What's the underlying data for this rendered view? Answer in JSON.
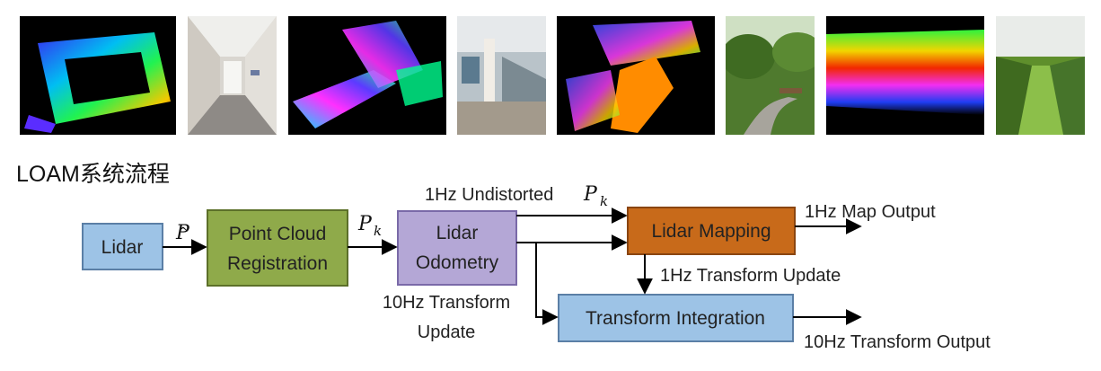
{
  "title": "LOAM系统流程",
  "thumbnails": [
    {
      "name": "indoor-pointcloud-loop",
      "kind": "pointcloud"
    },
    {
      "name": "hallway-photo",
      "kind": "photo"
    },
    {
      "name": "building-pointcloud",
      "kind": "pointcloud"
    },
    {
      "name": "atrium-stairs-photo",
      "kind": "photo"
    },
    {
      "name": "campus-pointcloud",
      "kind": "pointcloud"
    },
    {
      "name": "park-path-photo",
      "kind": "photo"
    },
    {
      "name": "orchard-pointcloud",
      "kind": "pointcloud"
    },
    {
      "name": "orchard-row-photo",
      "kind": "photo"
    }
  ],
  "nodes": {
    "lidar": {
      "line1": "Lidar",
      "fill": "#9dc3e6",
      "stroke": "#5b7fa6"
    },
    "registration": {
      "line1": "Point Cloud",
      "line2": "Registration",
      "fill": "#8faa4a",
      "stroke": "#5c7029"
    },
    "odometry": {
      "line1": "Lidar",
      "line2": "Odometry",
      "fill": "#b4a7d6",
      "stroke": "#7a6aa8"
    },
    "mapping": {
      "line1": "Lidar Mapping",
      "fill": "#c86a1a",
      "stroke": "#8a4510"
    },
    "integration": {
      "line1": "Transform Integration",
      "fill": "#9dc3e6",
      "stroke": "#5b7fa6"
    }
  },
  "edges": {
    "lidar_to_registration": {
      "symbol": "P",
      "accent": "^"
    },
    "registration_to_odometry": {
      "symbol": "P",
      "subscript": "k"
    },
    "odometry_to_mapping": {
      "label": "1Hz Undistorted",
      "symbol": "P",
      "subscript": "k"
    },
    "map_output": {
      "label": "1Hz Map Output"
    },
    "mapping_to_integration": {
      "label": "1Hz Transform Update"
    },
    "odometry_to_integration": {
      "line1": "10Hz Transform",
      "line2": "Update"
    },
    "integration_output": {
      "label": "10Hz Transform Output"
    }
  }
}
